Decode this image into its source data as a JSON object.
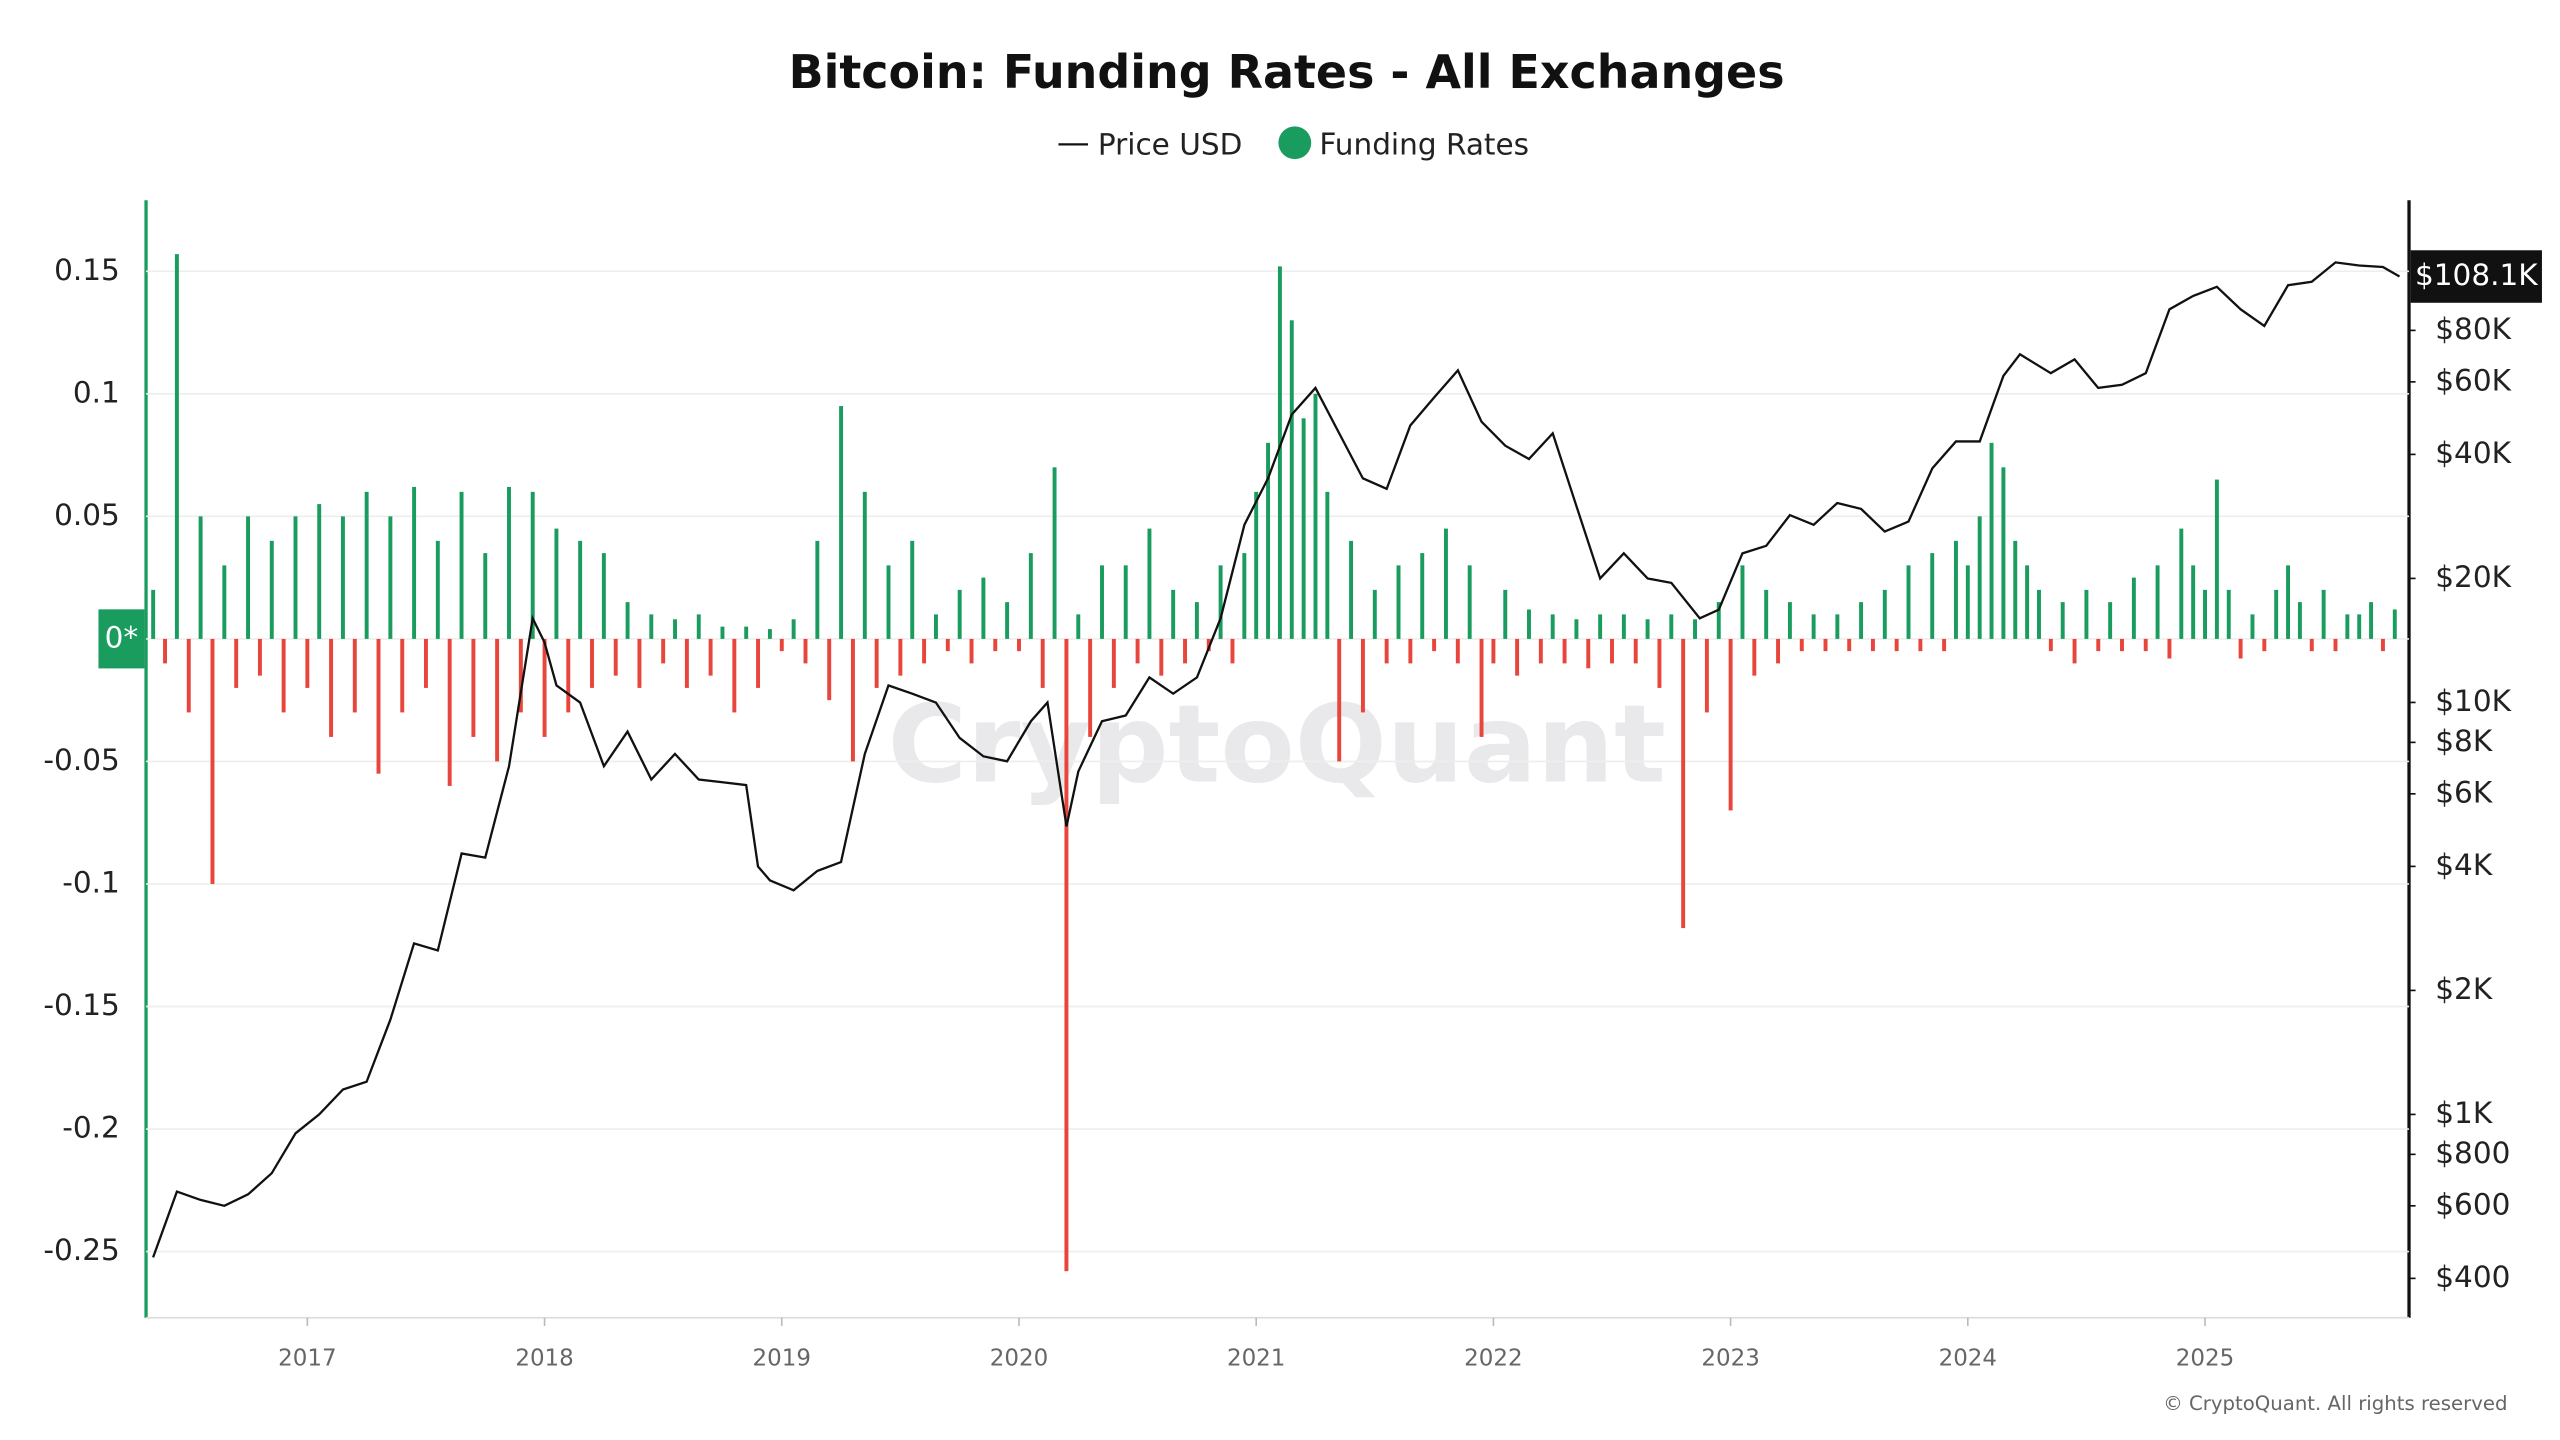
{
  "chart_data": {
    "type": "combo",
    "title": "Bitcoin: Funding Rates - All Exchanges",
    "watermark": "CryptoQuant",
    "copyright": "© CryptoQuant. All rights reserved",
    "xlim": [
      2016.32,
      2025.86
    ],
    "xticks": [
      2017,
      2018,
      2019,
      2020,
      2021,
      2022,
      2023,
      2024,
      2025
    ],
    "ylim": [
      -0.277,
      0.179
    ],
    "yticks": [
      0.15,
      0.1,
      0.05,
      {
        "value": 0,
        "label": "0*"
      },
      -0.05,
      -0.1,
      -0.15,
      -0.2,
      -0.25
    ],
    "y2_log": true,
    "y2lim": [
      321,
      165600
    ],
    "y2ticks": [
      {
        "value": 400,
        "label": "$400"
      },
      {
        "value": 600,
        "label": "$600"
      },
      {
        "value": 800,
        "label": "$800"
      },
      {
        "value": 1000,
        "label": "$1K"
      },
      {
        "value": 2000,
        "label": "$2K"
      },
      {
        "value": 4000,
        "label": "$4K"
      },
      {
        "value": 6000,
        "label": "$6K"
      },
      {
        "value": 8000,
        "label": "$8K"
      },
      {
        "value": 10000,
        "label": "$10K"
      },
      {
        "value": 20000,
        "label": "$20K"
      },
      {
        "value": 40000,
        "label": "$40K"
      },
      {
        "value": 60000,
        "label": "$60K"
      },
      {
        "value": 80000,
        "label": "$80K"
      }
    ],
    "y2_marker": {
      "value": 108100,
      "label": "$108.1K"
    },
    "grid": true,
    "series": [
      {
        "name": "Price USD",
        "type": "line",
        "axis": "y2",
        "color": "#111111",
        "x": [
          2016.35,
          2016.45,
          2016.55,
          2016.65,
          2016.75,
          2016.85,
          2016.95,
          2017.05,
          2017.15,
          2017.25,
          2017.35,
          2017.45,
          2017.55,
          2017.65,
          2017.75,
          2017.85,
          2017.95,
          2018.0,
          2018.05,
          2018.15,
          2018.25,
          2018.35,
          2018.45,
          2018.55,
          2018.65,
          2018.75,
          2018.85,
          2018.9,
          2018.95,
          2019.05,
          2019.15,
          2019.25,
          2019.35,
          2019.45,
          2019.55,
          2019.65,
          2019.75,
          2019.85,
          2019.95,
          2020.05,
          2020.12,
          2020.2,
          2020.25,
          2020.35,
          2020.45,
          2020.55,
          2020.65,
          2020.75,
          2020.85,
          2020.95,
          2021.05,
          2021.15,
          2021.25,
          2021.35,
          2021.45,
          2021.55,
          2021.65,
          2021.75,
          2021.85,
          2021.95,
          2022.05,
          2022.15,
          2022.25,
          2022.35,
          2022.45,
          2022.55,
          2022.65,
          2022.75,
          2022.87,
          2022.95,
          2023.05,
          2023.15,
          2023.25,
          2023.35,
          2023.45,
          2023.55,
          2023.65,
          2023.75,
          2023.85,
          2023.95,
          2024.05,
          2024.15,
          2024.22,
          2024.35,
          2024.45,
          2024.55,
          2024.65,
          2024.75,
          2024.85,
          2024.95,
          2025.05,
          2025.15,
          2025.25,
          2025.35,
          2025.45,
          2025.55,
          2025.65,
          2025.75,
          2025.82
        ],
        "values": [
          450,
          650,
          620,
          600,
          640,
          720,
          900,
          1000,
          1150,
          1200,
          1700,
          2600,
          2500,
          4300,
          4200,
          7000,
          16000,
          14000,
          11000,
          10000,
          7000,
          8500,
          6500,
          7500,
          6500,
          6400,
          6300,
          4000,
          3700,
          3500,
          3900,
          4100,
          7500,
          11000,
          10500,
          10000,
          8200,
          7400,
          7200,
          9000,
          10000,
          5000,
          6800,
          9000,
          9300,
          11500,
          10500,
          11500,
          16000,
          27000,
          35000,
          50000,
          58000,
          45000,
          35000,
          33000,
          47000,
          55000,
          64000,
          48000,
          42000,
          39000,
          45000,
          30000,
          20000,
          23000,
          20000,
          19500,
          16000,
          16800,
          23000,
          24000,
          28500,
          27000,
          30500,
          29500,
          26000,
          27500,
          37000,
          43000,
          43000,
          62000,
          70000,
          63000,
          68000,
          58000,
          59000,
          63000,
          90000,
          97000,
          102000,
          90000,
          82000,
          103000,
          105000,
          117000,
          115000,
          114000,
          108100
        ]
      },
      {
        "name": "Funding Rates",
        "type": "bar",
        "color": "#1a9c5e",
        "negative_color": "#e8453c",
        "x": [
          2016.35,
          2016.4,
          2016.45,
          2016.5,
          2016.55,
          2016.6,
          2016.65,
          2016.7,
          2016.75,
          2016.8,
          2016.85,
          2016.9,
          2016.95,
          2017.0,
          2017.05,
          2017.1,
          2017.15,
          2017.2,
          2017.25,
          2017.3,
          2017.35,
          2017.4,
          2017.45,
          2017.5,
          2017.55,
          2017.6,
          2017.65,
          2017.7,
          2017.75,
          2017.8,
          2017.85,
          2017.9,
          2017.95,
          2018.0,
          2018.05,
          2018.1,
          2018.15,
          2018.2,
          2018.25,
          2018.3,
          2018.35,
          2018.4,
          2018.45,
          2018.5,
          2018.55,
          2018.6,
          2018.65,
          2018.7,
          2018.75,
          2018.8,
          2018.85,
          2018.9,
          2018.95,
          2019.0,
          2019.05,
          2019.1,
          2019.15,
          2019.2,
          2019.25,
          2019.3,
          2019.35,
          2019.4,
          2019.45,
          2019.5,
          2019.55,
          2019.6,
          2019.65,
          2019.7,
          2019.75,
          2019.8,
          2019.85,
          2019.9,
          2019.95,
          2020.0,
          2020.05,
          2020.1,
          2020.15,
          2020.2,
          2020.25,
          2020.3,
          2020.35,
          2020.4,
          2020.45,
          2020.5,
          2020.55,
          2020.6,
          2020.65,
          2020.7,
          2020.75,
          2020.8,
          2020.85,
          2020.9,
          2020.95,
          2021.0,
          2021.05,
          2021.1,
          2021.15,
          2021.2,
          2021.25,
          2021.3,
          2021.35,
          2021.4,
          2021.45,
          2021.5,
          2021.55,
          2021.6,
          2021.65,
          2021.7,
          2021.75,
          2021.8,
          2021.85,
          2021.9,
          2021.95,
          2022.0,
          2022.05,
          2022.1,
          2022.15,
          2022.2,
          2022.25,
          2022.3,
          2022.35,
          2022.4,
          2022.45,
          2022.5,
          2022.55,
          2022.6,
          2022.65,
          2022.7,
          2022.75,
          2022.8,
          2022.85,
          2022.9,
          2022.95,
          2023.0,
          2023.05,
          2023.1,
          2023.15,
          2023.2,
          2023.25,
          2023.3,
          2023.35,
          2023.4,
          2023.45,
          2023.5,
          2023.55,
          2023.6,
          2023.65,
          2023.7,
          2023.75,
          2023.8,
          2023.85,
          2023.9,
          2023.95,
          2024.0,
          2024.05,
          2024.1,
          2024.15,
          2024.2,
          2024.25,
          2024.3,
          2024.35,
          2024.4,
          2024.45,
          2024.5,
          2024.55,
          2024.6,
          2024.65,
          2024.7,
          2024.75,
          2024.8,
          2024.85,
          2024.9,
          2024.95,
          2025.0,
          2025.05,
          2025.1,
          2025.15,
          2025.2,
          2025.25,
          2025.3,
          2025.35,
          2025.4,
          2025.45,
          2025.5,
          2025.55,
          2025.6,
          2025.65,
          2025.7,
          2025.75,
          2025.8
        ],
        "values": [
          0.02,
          -0.01,
          0.157,
          -0.03,
          0.05,
          -0.1,
          0.03,
          -0.02,
          0.05,
          -0.015,
          0.04,
          -0.03,
          0.05,
          -0.02,
          0.055,
          -0.04,
          0.05,
          -0.03,
          0.06,
          -0.055,
          0.05,
          -0.03,
          0.062,
          -0.02,
          0.04,
          -0.06,
          0.06,
          -0.04,
          0.035,
          -0.05,
          0.062,
          -0.03,
          0.06,
          -0.04,
          0.045,
          -0.03,
          0.04,
          -0.02,
          0.035,
          -0.015,
          0.015,
          -0.02,
          0.01,
          -0.01,
          0.008,
          -0.02,
          0.01,
          -0.015,
          0.005,
          -0.03,
          0.005,
          -0.02,
          0.004,
          -0.005,
          0.008,
          -0.01,
          0.04,
          -0.025,
          0.095,
          -0.05,
          0.06,
          -0.02,
          0.03,
          -0.015,
          0.04,
          -0.01,
          0.01,
          -0.005,
          0.02,
          -0.01,
          0.025,
          -0.005,
          0.015,
          -0.005,
          0.035,
          -0.02,
          0.07,
          -0.258,
          0.01,
          -0.04,
          0.03,
          -0.02,
          0.03,
          -0.01,
          0.045,
          -0.015,
          0.02,
          -0.01,
          0.015,
          -0.005,
          0.03,
          -0.01,
          0.035,
          0.06,
          0.08,
          0.152,
          0.13,
          0.09,
          0.1,
          0.06,
          -0.05,
          0.04,
          -0.03,
          0.02,
          -0.01,
          0.03,
          -0.01,
          0.035,
          -0.005,
          0.045,
          -0.01,
          0.03,
          -0.04,
          -0.01,
          0.02,
          -0.015,
          0.012,
          -0.01,
          0.01,
          -0.01,
          0.008,
          -0.012,
          0.01,
          -0.01,
          0.01,
          -0.01,
          0.008,
          -0.02,
          0.01,
          -0.118,
          0.008,
          -0.03,
          0.015,
          -0.07,
          0.03,
          -0.015,
          0.02,
          -0.01,
          0.015,
          -0.005,
          0.01,
          -0.005,
          0.01,
          -0.005,
          0.015,
          -0.005,
          0.02,
          -0.005,
          0.03,
          -0.005,
          0.035,
          -0.005,
          0.04,
          0.03,
          0.05,
          0.08,
          0.07,
          0.04,
          0.03,
          0.02,
          -0.005,
          0.015,
          -0.01,
          0.02,
          -0.005,
          0.015,
          -0.005,
          0.025,
          -0.005,
          0.03,
          -0.008,
          0.045,
          0.03,
          0.02,
          0.065,
          0.02,
          -0.008,
          0.01,
          -0.005,
          0.02,
          0.03,
          0.015,
          -0.005,
          0.02,
          -0.005,
          0.01,
          0.01,
          0.015,
          -0.005,
          0.012
        ]
      }
    ]
  }
}
